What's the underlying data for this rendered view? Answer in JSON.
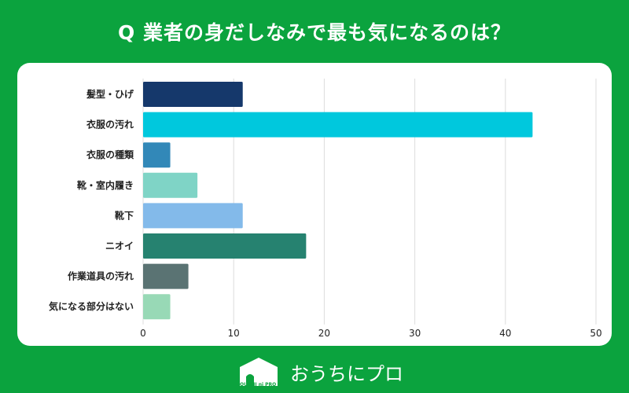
{
  "title": "Q 業者の身だしなみで最も気になるのは？",
  "brand": {
    "name": "おうちにプロ",
    "logo_text": "OUCHI ni PRO"
  },
  "chart_data": {
    "type": "bar",
    "orientation": "horizontal",
    "title": "Q 業者の身だしなみで最も気になるのは？",
    "categories": [
      "髪型・ひげ",
      "衣服の汚れ",
      "衣服の種類",
      "靴・室内履き",
      "靴下",
      "ニオイ",
      "作業道具の汚れ",
      "気になる部分はない"
    ],
    "values": [
      11,
      43,
      3,
      6,
      11,
      18,
      5,
      3
    ],
    "colors": [
      "#15386b",
      "#00c8dd",
      "#3288b8",
      "#7fd4c6",
      "#83baea",
      "#268270",
      "#5a7373",
      "#98d9b6"
    ],
    "xlim": [
      0,
      50
    ],
    "xticks": [
      0,
      10,
      20,
      30,
      40,
      50
    ],
    "xlabel": "",
    "ylabel": "",
    "grid": "vertical"
  }
}
